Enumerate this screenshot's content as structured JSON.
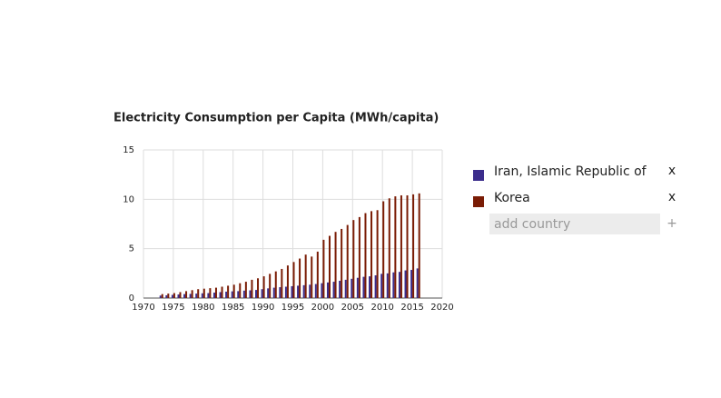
{
  "chart_data": {
    "type": "bar",
    "title": "Electricity Consumption per Capita (MWh/capita)",
    "x": [
      1973,
      1974,
      1975,
      1976,
      1977,
      1978,
      1979,
      1980,
      1981,
      1982,
      1983,
      1984,
      1985,
      1986,
      1987,
      1988,
      1989,
      1990,
      1991,
      1992,
      1993,
      1994,
      1995,
      1996,
      1997,
      1998,
      1999,
      2000,
      2001,
      2002,
      2003,
      2004,
      2005,
      2006,
      2007,
      2008,
      2009,
      2010,
      2011,
      2012,
      2013,
      2014,
      2015,
      2016
    ],
    "series": [
      {
        "name": "Iran, Islamic Republic of",
        "color": "#3b2d8c",
        "values": [
          0.25,
          0.28,
          0.32,
          0.36,
          0.4,
          0.42,
          0.45,
          0.48,
          0.5,
          0.55,
          0.6,
          0.65,
          0.68,
          0.7,
          0.75,
          0.78,
          0.82,
          0.9,
          0.98,
          1.05,
          1.1,
          1.15,
          1.2,
          1.25,
          1.3,
          1.35,
          1.42,
          1.5,
          1.58,
          1.65,
          1.75,
          1.85,
          1.95,
          2.05,
          2.15,
          2.2,
          2.3,
          2.45,
          2.5,
          2.6,
          2.65,
          2.8,
          2.85,
          3.0
        ]
      },
      {
        "name": "Korea",
        "color": "#7a1c05",
        "values": [
          0.4,
          0.45,
          0.5,
          0.6,
          0.7,
          0.8,
          0.9,
          0.95,
          1.0,
          1.05,
          1.15,
          1.25,
          1.35,
          1.5,
          1.65,
          1.85,
          2.0,
          2.2,
          2.45,
          2.7,
          2.95,
          3.3,
          3.65,
          4.0,
          4.4,
          4.2,
          4.7,
          5.9,
          6.3,
          6.7,
          7.0,
          7.4,
          7.9,
          8.2,
          8.6,
          8.8,
          8.9,
          9.8,
          10.1,
          10.3,
          10.4,
          10.4,
          10.5,
          10.6
        ]
      }
    ],
    "xlim": [
      1970,
      2020
    ],
    "xticks": [
      1970,
      1975,
      1980,
      1985,
      1990,
      1995,
      2000,
      2005,
      2010,
      2015,
      2020
    ],
    "ylim": [
      0,
      15
    ],
    "yticks": [
      0,
      5,
      10,
      15
    ],
    "grid": true
  },
  "ui": {
    "remove_label": "x",
    "add_placeholder": "add country",
    "add_button": "+"
  }
}
